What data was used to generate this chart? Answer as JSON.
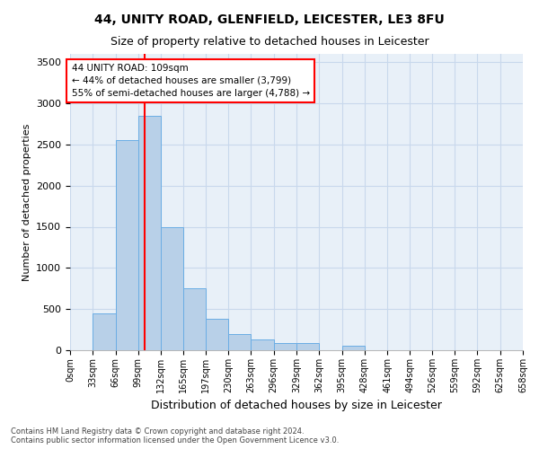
{
  "title1": "44, UNITY ROAD, GLENFIELD, LEICESTER, LE3 8FU",
  "title2": "Size of property relative to detached houses in Leicester",
  "xlabel": "Distribution of detached houses by size in Leicester",
  "ylabel": "Number of detached properties",
  "annotation_line1": "44 UNITY ROAD: 109sqm",
  "annotation_line2": "← 44% of detached houses are smaller (3,799)",
  "annotation_line3": "55% of semi-detached houses are larger (4,788) →",
  "property_size_sqm": 109,
  "bin_edges": [
    0,
    33,
    66,
    99,
    132,
    165,
    197,
    230,
    263,
    296,
    329,
    362,
    395,
    428,
    461,
    494,
    526,
    559,
    592,
    625,
    658
  ],
  "bar_heights": [
    0,
    450,
    2550,
    2850,
    1500,
    750,
    380,
    200,
    130,
    85,
    85,
    0,
    60,
    0,
    0,
    0,
    0,
    0,
    0,
    0
  ],
  "bar_color": "#b8d0e8",
  "bar_edge_color": "#6aade4",
  "red_line_x": 109,
  "ylim": [
    0,
    3600
  ],
  "yticks": [
    0,
    500,
    1000,
    1500,
    2000,
    2500,
    3000,
    3500
  ],
  "grid_color": "#c8d8ec",
  "background_color": "#e8f0f8",
  "annotation_box_color": "white",
  "annotation_box_edge": "red",
  "footer_line1": "Contains HM Land Registry data © Crown copyright and database right 2024.",
  "footer_line2": "Contains public sector information licensed under the Open Government Licence v3.0."
}
